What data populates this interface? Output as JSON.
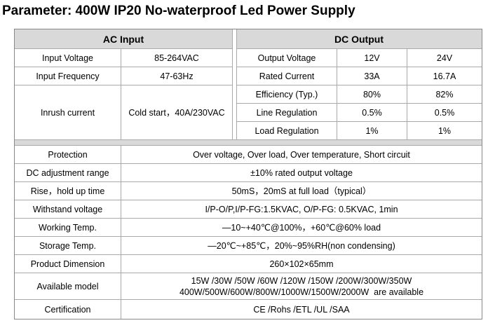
{
  "title": "Parameter: 400W IP20 No-waterproof Led Power Supply",
  "ac_input": {
    "header": "AC Input",
    "rows": [
      {
        "label": "Input Voltage",
        "value": "85-264VAC"
      },
      {
        "label": "Input Frequency",
        "value": "47-63Hz"
      },
      {
        "label": "Inrush current",
        "value": "Cold start，40A/230VAC"
      }
    ]
  },
  "dc_output": {
    "header": "DC Output",
    "rows": [
      {
        "label": "Output Voltage",
        "v12": "12V",
        "v24": "24V"
      },
      {
        "label": "Rated Current",
        "v12": "33A",
        "v24": "16.7A"
      },
      {
        "label": "Efficiency (Typ.)",
        "v12": "80%",
        "v24": "82%"
      },
      {
        "label": "Line Regulation",
        "v12": "0.5%",
        "v24": "0.5%"
      },
      {
        "label": "Load Regulation",
        "v12": "1%",
        "v24": "1%"
      }
    ]
  },
  "specs": [
    {
      "label": "Protection",
      "value": "Over voltage, Over load, Over temperature, Short circuit"
    },
    {
      "label": "DC adjustment range",
      "value": "±10% rated output voltage"
    },
    {
      "label": "Rise，hold up time",
      "value": "50mS，20mS at full load（typical）"
    },
    {
      "label": "Withstand voltage",
      "value": "I/P-O/P,I/P-FG:1.5KVAC, O/P-FG: 0.5KVAC, 1min"
    },
    {
      "label": "Working Temp.",
      "value": "—10~+40℃@100%，+60℃@60% load"
    },
    {
      "label": "Storage Temp.",
      "value": "—20℃~+85℃，20%~95%RH(non condensing)"
    },
    {
      "label": "Product Dimension",
      "value": "260×102×65mm"
    },
    {
      "label": "Available model",
      "value": "15W /30W /50W /60W /120W /150W /200W/300W/350W",
      "value2": "400W/500W/600W/800W/1000W/1500W/2000W  are available"
    },
    {
      "label": "Certification",
      "value": "CE /Rohs /ETL /UL /SAA"
    }
  ]
}
